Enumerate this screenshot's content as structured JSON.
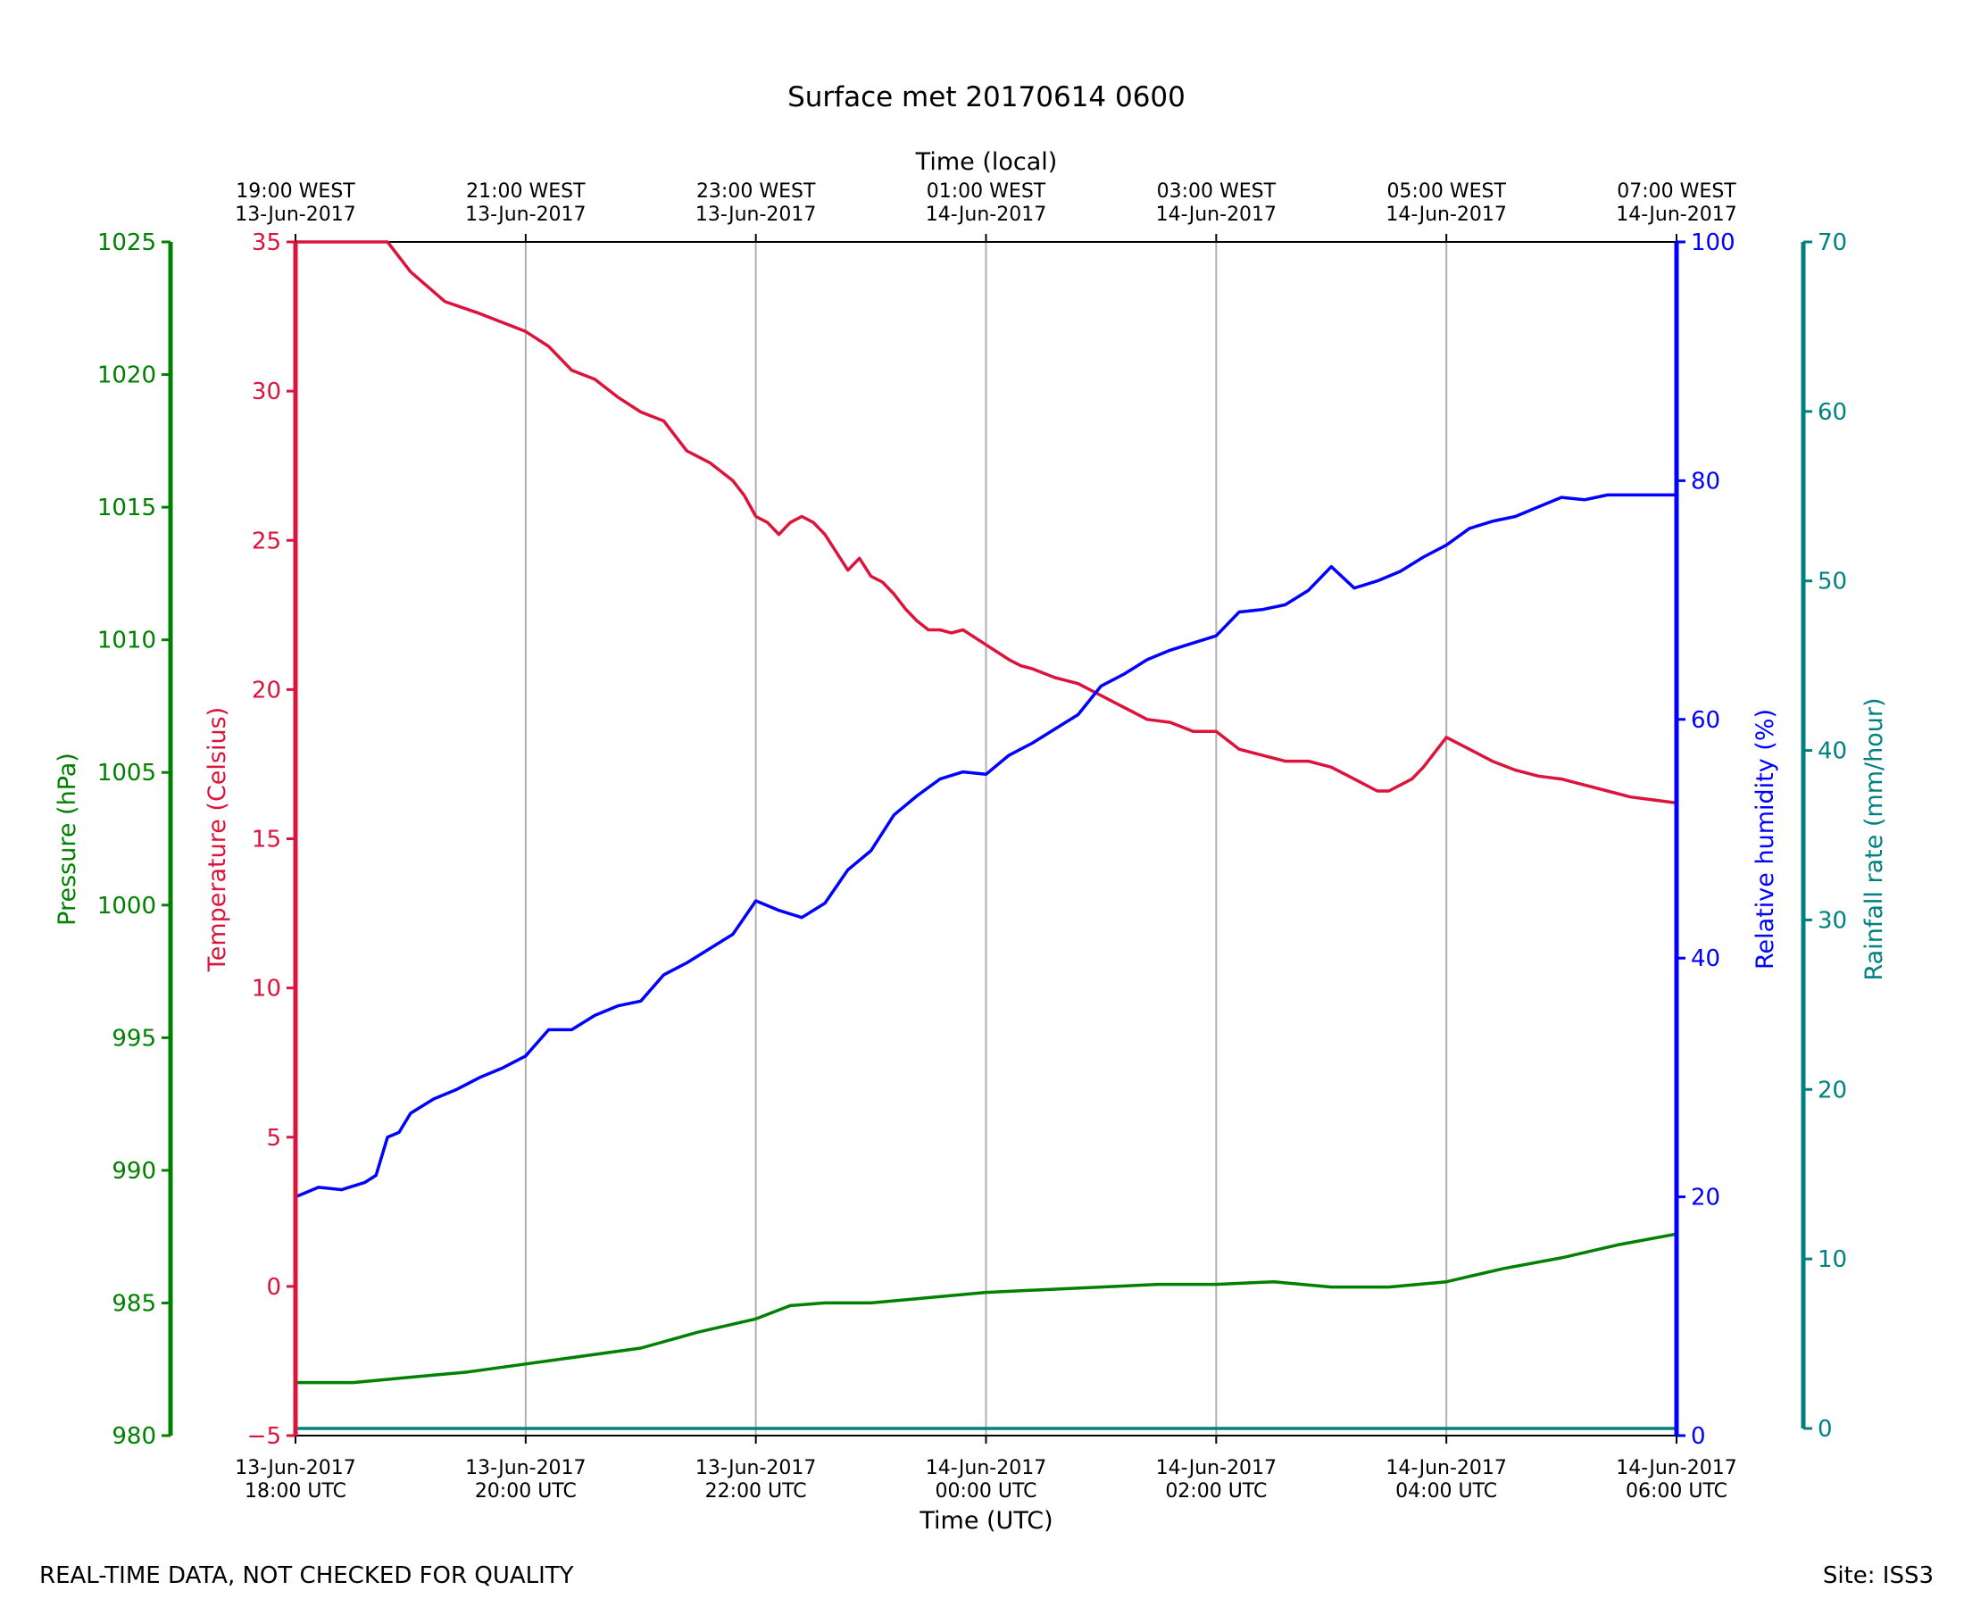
{
  "chart_data": {
    "type": "line",
    "title": "Surface met 20170614 0600",
    "top_axis_label": "Time (local)",
    "xlabel": "Time (UTC)",
    "x_range": [
      "13-Jun-2017 18:00 UTC",
      "14-Jun-2017 06:00 UTC"
    ],
    "x_ticks_bottom": [
      {
        "x": 0,
        "line1": "13-Jun-2017",
        "line2": "18:00 UTC"
      },
      {
        "x": 2,
        "line1": "13-Jun-2017",
        "line2": "20:00 UTC"
      },
      {
        "x": 4,
        "line1": "13-Jun-2017",
        "line2": "22:00 UTC"
      },
      {
        "x": 6,
        "line1": "14-Jun-2017",
        "line2": "00:00 UTC"
      },
      {
        "x": 8,
        "line1": "14-Jun-2017",
        "line2": "02:00 UTC"
      },
      {
        "x": 10,
        "line1": "14-Jun-2017",
        "line2": "04:00 UTC"
      },
      {
        "x": 12,
        "line1": "14-Jun-2017",
        "line2": "06:00 UTC"
      }
    ],
    "x_ticks_top": [
      {
        "x": 0,
        "line1": "19:00 WEST",
        "line2": "13-Jun-2017"
      },
      {
        "x": 2,
        "line1": "21:00 WEST",
        "line2": "13-Jun-2017"
      },
      {
        "x": 4,
        "line1": "23:00 WEST",
        "line2": "13-Jun-2017"
      },
      {
        "x": 6,
        "line1": "01:00 WEST",
        "line2": "14-Jun-2017"
      },
      {
        "x": 8,
        "line1": "03:00 WEST",
        "line2": "14-Jun-2017"
      },
      {
        "x": 10,
        "line1": "05:00 WEST",
        "line2": "14-Jun-2017"
      },
      {
        "x": 12,
        "line1": "07:00 WEST",
        "line2": "14-Jun-2017"
      }
    ],
    "grid": true,
    "axes": {
      "pressure": {
        "label": "Pressure (hPa)",
        "color": "#008000",
        "range": [
          980,
          1025
        ],
        "ticks": [
          980,
          985,
          990,
          995,
          1000,
          1005,
          1010,
          1015,
          1020,
          1025
        ]
      },
      "temperature": {
        "label": "Temperature (Celsius)",
        "color": "#dc143c",
        "range": [
          -5,
          35
        ],
        "ticks": [
          "−5",
          "0",
          "5",
          "10",
          "15",
          "20",
          "25",
          "30",
          "35"
        ]
      },
      "humidity": {
        "label": "Relative humidity (%)",
        "color": "#0000ff",
        "range": [
          0,
          100
        ],
        "ticks": [
          0,
          20,
          40,
          60,
          80,
          100
        ]
      },
      "rainfall": {
        "label": "Rainfall rate (mm/hour)",
        "color": "#008080",
        "range": [
          0,
          70
        ],
        "ticks": [
          0,
          10,
          20,
          30,
          40,
          50,
          60,
          70
        ]
      }
    },
    "series": [
      {
        "axis": "temperature",
        "x": [
          0,
          0.5,
          0.8,
          1.0,
          1.3,
          1.6,
          2.0,
          2.2,
          2.4,
          2.6,
          2.8,
          3.0,
          3.2,
          3.4,
          3.6,
          3.8,
          3.9,
          4.0,
          4.1,
          4.2,
          4.3,
          4.4,
          4.5,
          4.6,
          4.7,
          4.8,
          4.9,
          5.0,
          5.1,
          5.2,
          5.3,
          5.4,
          5.5,
          5.6,
          5.7,
          5.8,
          6.0,
          6.2,
          6.3,
          6.4,
          6.6,
          6.8,
          7.0,
          7.2,
          7.4,
          7.6,
          7.8,
          8.0,
          8.2,
          8.4,
          8.6,
          8.8,
          9.0,
          9.2,
          9.4,
          9.5,
          9.6,
          9.7,
          9.8,
          10.0,
          10.2,
          10.4,
          10.6,
          10.8,
          11.0,
          11.2,
          11.4,
          11.6,
          11.8,
          12.0
        ],
        "y": [
          35,
          35,
          35,
          34.0,
          33.0,
          32.6,
          32.0,
          31.5,
          30.7,
          30.4,
          29.8,
          29.3,
          29.0,
          28.0,
          27.6,
          27.0,
          26.5,
          25.8,
          25.6,
          25.2,
          25.6,
          25.8,
          25.6,
          25.2,
          24.6,
          24.0,
          24.4,
          23.8,
          23.6,
          23.2,
          22.7,
          22.3,
          22.0,
          22.0,
          21.9,
          22.0,
          21.5,
          21.0,
          20.8,
          20.7,
          20.4,
          20.2,
          19.8,
          19.4,
          19.0,
          18.9,
          18.6,
          18.6,
          18.0,
          17.8,
          17.6,
          17.6,
          17.4,
          17.0,
          16.6,
          16.6,
          16.8,
          17.0,
          17.4,
          18.4,
          18.0,
          17.6,
          17.3,
          17.1,
          17.0,
          16.8,
          16.6,
          16.4,
          16.3,
          16.2
        ]
      },
      {
        "axis": "humidity",
        "x": [
          0,
          0.2,
          0.4,
          0.6,
          0.7,
          0.8,
          0.9,
          1.0,
          1.2,
          1.4,
          1.6,
          1.8,
          2.0,
          2.2,
          2.4,
          2.6,
          2.8,
          3.0,
          3.2,
          3.4,
          3.6,
          3.8,
          4.0,
          4.2,
          4.4,
          4.6,
          4.8,
          5.0,
          5.2,
          5.4,
          5.6,
          5.8,
          6.0,
          6.2,
          6.4,
          6.6,
          6.8,
          7.0,
          7.2,
          7.4,
          7.6,
          7.8,
          8.0,
          8.2,
          8.4,
          8.6,
          8.8,
          9.0,
          9.2,
          9.4,
          9.6,
          9.8,
          10.0,
          10.2,
          10.4,
          10.6,
          10.8,
          11.0,
          11.2,
          11.4,
          11.6,
          11.8,
          12.0
        ],
        "y": [
          20.0,
          20.8,
          20.6,
          21.2,
          21.8,
          25.0,
          25.4,
          27.0,
          28.2,
          29.0,
          30.0,
          30.8,
          31.8,
          34.0,
          34.0,
          35.2,
          36.0,
          36.4,
          38.6,
          39.6,
          40.8,
          42.0,
          44.8,
          44.0,
          43.4,
          44.6,
          47.4,
          49.0,
          52.0,
          53.6,
          55.0,
          55.6,
          55.4,
          57.0,
          58.0,
          59.2,
          60.4,
          62.8,
          63.8,
          65.0,
          65.8,
          66.4,
          67.0,
          69.0,
          69.2,
          69.6,
          70.8,
          72.8,
          71.0,
          71.6,
          72.4,
          73.6,
          74.6,
          76.0,
          76.6,
          77.0,
          77.8,
          78.6,
          78.4,
          78.8,
          78.8,
          78.8,
          78.8
        ]
      },
      {
        "axis": "pressure",
        "x": [
          0,
          0.5,
          1.0,
          1.5,
          2.0,
          2.5,
          3.0,
          3.5,
          4.0,
          4.3,
          4.6,
          5.0,
          5.5,
          6.0,
          6.5,
          7.0,
          7.5,
          8.0,
          8.5,
          9.0,
          9.5,
          10.0,
          10.2,
          10.5,
          11.0,
          11.5,
          12.0
        ],
        "y": [
          982.0,
          982.0,
          982.2,
          982.4,
          982.7,
          983.0,
          983.3,
          983.9,
          984.4,
          984.9,
          985.0,
          985.0,
          985.2,
          985.4,
          985.5,
          985.6,
          985.7,
          985.7,
          985.8,
          985.6,
          985.6,
          985.8,
          986.0,
          986.3,
          986.7,
          987.2,
          987.6
        ]
      },
      {
        "axis": "rainfall",
        "x": [
          0,
          12
        ],
        "y": [
          0,
          0
        ]
      }
    ]
  },
  "footer": {
    "left": "REAL-TIME DATA, NOT CHECKED FOR QUALITY",
    "right": "Site: ISS3"
  }
}
